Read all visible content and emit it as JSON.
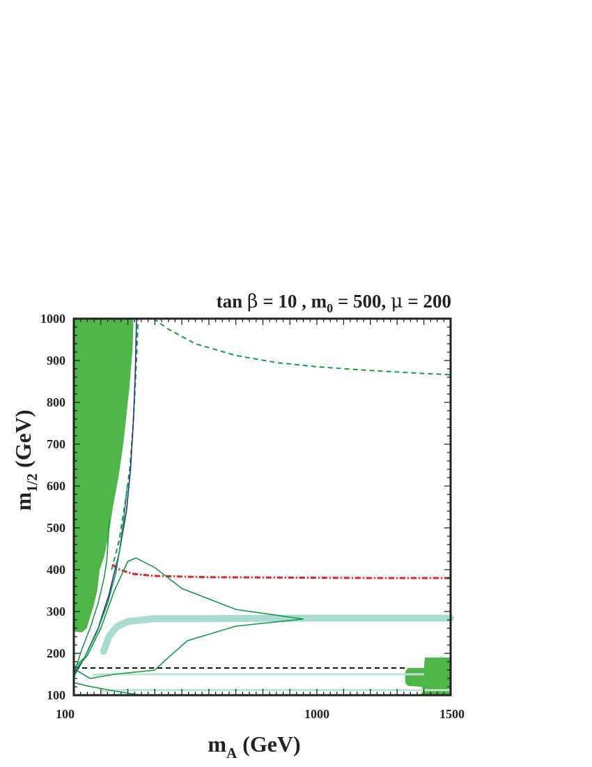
{
  "chart_data": {
    "type": "line",
    "title": {
      "text_a": "tan ",
      "beta": "β",
      "text_b": " = 10 , m",
      "sub0": "0",
      "text_c": " = 500, ",
      "mu": "μ",
      "text_d": " = 200"
    },
    "xlabel": {
      "main": "m",
      "sub": "A",
      "unit": " (GeV)"
    },
    "ylabel": {
      "main": "m",
      "sub": "1/2",
      "unit": " (GeV)"
    },
    "xlim": [
      100,
      1500
    ],
    "ylim": [
      100,
      1000
    ],
    "x_ticks": [
      "100",
      "1000",
      "1500"
    ],
    "y_ticks": [
      "100",
      "200",
      "300",
      "400",
      "500",
      "600",
      "700",
      "800",
      "900",
      "1000"
    ],
    "grid": false,
    "colors": {
      "excluded_region": "#4fb748",
      "relic_band": "#a9dccf",
      "relic_thin": "#b9e3d8",
      "contour": "#139a4b",
      "dashed_green": "#139a4b",
      "red_dashdot": "#e51f24",
      "black_dashed": "#111111",
      "blue_line": "#2a2f8a"
    },
    "series": [
      {
        "name": "excluded_region_left",
        "style": "filled",
        "color_key": "excluded_region",
        "points": [
          [
            100,
            1000
          ],
          [
            321,
            1000
          ],
          [
            318,
            930
          ],
          [
            305,
            830
          ],
          [
            283,
            700
          ],
          [
            265,
            620
          ],
          [
            245,
            550
          ],
          [
            228,
            480
          ],
          [
            212,
            430
          ],
          [
            196,
            400
          ],
          [
            187,
            350
          ],
          [
            172,
            310
          ],
          [
            162,
            290
          ],
          [
            148,
            260
          ],
          [
            130,
            250
          ],
          [
            104,
            252
          ],
          [
            100,
            258
          ]
        ]
      },
      {
        "name": "excluded_region_right",
        "style": "filled",
        "color_key": "excluded_region",
        "points": [
          [
            1404,
            190
          ],
          [
            1500,
            190
          ],
          [
            1500,
            100
          ],
          [
            1388,
            100
          ],
          [
            1395,
            110
          ],
          [
            1392,
            120
          ],
          [
            1340,
            122
          ],
          [
            1330,
            130
          ],
          [
            1330,
            155
          ],
          [
            1340,
            165
          ],
          [
            1400,
            165
          ]
        ]
      },
      {
        "name": "relic_band_main",
        "style": "band",
        "color_key": "relic_band",
        "points": [
          [
            210,
            205
          ],
          [
            230,
            240
          ],
          [
            260,
            264
          ],
          [
            300,
            276
          ],
          [
            400,
            283
          ],
          [
            600,
            283
          ],
          [
            900,
            284
          ],
          [
            1200,
            284
          ],
          [
            1500,
            284
          ]
        ]
      },
      {
        "name": "relic_band_low_lower",
        "style": "thin",
        "color_key": "relic_thin",
        "points": [
          [
            200,
            108
          ],
          [
            250,
            112
          ],
          [
            400,
            112
          ],
          [
            600,
            112
          ],
          [
            900,
            112
          ],
          [
            1200,
            112
          ],
          [
            1415,
            112
          ],
          [
            1500,
            112
          ]
        ]
      },
      {
        "name": "relic_band_low_upper",
        "style": "thin",
        "color_key": "relic_thin",
        "points": [
          [
            170,
            148
          ],
          [
            200,
            150
          ],
          [
            400,
            150
          ],
          [
            900,
            150
          ],
          [
            1200,
            150
          ],
          [
            1400,
            150
          ]
        ]
      },
      {
        "name": "green_dashed_upper",
        "style": "dashed",
        "color_key": "dashed_green",
        "points": [
          [
            395,
            1000
          ],
          [
            450,
            975
          ],
          [
            550,
            940
          ],
          [
            700,
            912
          ],
          [
            850,
            895
          ],
          [
            1000,
            885
          ],
          [
            1200,
            876
          ],
          [
            1400,
            869
          ],
          [
            1500,
            866
          ]
        ]
      },
      {
        "name": "green_dashed_vertical",
        "style": "dashed",
        "color_key": "dashed_green",
        "points": [
          [
            240,
            400
          ],
          [
            268,
            470
          ],
          [
            290,
            560
          ],
          [
            307,
            640
          ],
          [
            318,
            730
          ],
          [
            326,
            820
          ],
          [
            333,
            920
          ],
          [
            338,
            1000
          ]
        ]
      },
      {
        "name": "red_dashdot_line",
        "style": "dashdot",
        "color_key": "red_dashdot",
        "points": [
          [
            242,
            412
          ],
          [
            270,
            400
          ],
          [
            320,
            390
          ],
          [
            400,
            385
          ],
          [
            600,
            382
          ],
          [
            900,
            381
          ],
          [
            1200,
            380
          ],
          [
            1500,
            380
          ]
        ]
      },
      {
        "name": "black_dashed_line",
        "style": "dashed",
        "color_key": "black_dashed",
        "points": [
          [
            100,
            165
          ],
          [
            300,
            165
          ],
          [
            600,
            165
          ],
          [
            900,
            165
          ],
          [
            1200,
            165
          ],
          [
            1340,
            165
          ]
        ]
      },
      {
        "name": "blue_line",
        "style": "solid",
        "color_key": "blue_line",
        "points": [
          [
            100,
            145
          ],
          [
            140,
            190
          ],
          [
            190,
            260
          ],
          [
            230,
            340
          ],
          [
            268,
            440
          ],
          [
            295,
            540
          ],
          [
            310,
            640
          ],
          [
            321,
            760
          ],
          [
            328,
            880
          ],
          [
            332,
            1000
          ]
        ]
      },
      {
        "name": "green_contour_wedge_upper",
        "style": "solid",
        "color_key": "contour",
        "points": [
          [
            108,
            163
          ],
          [
            150,
            195
          ],
          [
            200,
            260
          ],
          [
            250,
            350
          ],
          [
            300,
            420
          ],
          [
            330,
            428
          ],
          [
            400,
            405
          ],
          [
            500,
            355
          ],
          [
            700,
            305
          ],
          [
            950,
            282
          ]
        ]
      },
      {
        "name": "green_contour_wedge_lower",
        "style": "solid",
        "color_key": "contour",
        "points": [
          [
            950,
            282
          ],
          [
            700,
            265
          ],
          [
            520,
            230
          ],
          [
            450,
            190
          ],
          [
            400,
            160
          ],
          [
            250,
            150
          ],
          [
            160,
            140
          ],
          [
            108,
            160
          ]
        ]
      },
      {
        "name": "green_contour_left",
        "style": "solid",
        "color_key": "contour",
        "points": [
          [
            100,
            135
          ],
          [
            110,
            170
          ],
          [
            130,
            210
          ],
          [
            160,
            260
          ],
          [
            190,
            320
          ],
          [
            212,
            380
          ],
          [
            222,
            420
          ],
          [
            228,
            480
          ],
          [
            232,
            520
          ]
        ]
      },
      {
        "name": "green_contour_inner",
        "style": "solid",
        "color_key": "contour",
        "points": [
          [
            100,
            165
          ],
          [
            140,
            190
          ],
          [
            185,
            250
          ],
          [
            225,
            320
          ],
          [
            255,
            390
          ],
          [
            270,
            450
          ],
          [
            285,
            520
          ],
          [
            298,
            600
          ]
        ]
      },
      {
        "name": "green_contour_bottom",
        "style": "solid",
        "color_key": "contour",
        "points": [
          [
            100,
            130
          ],
          [
            150,
            122
          ],
          [
            250,
            110
          ],
          [
            350,
            100
          ]
        ]
      }
    ]
  }
}
